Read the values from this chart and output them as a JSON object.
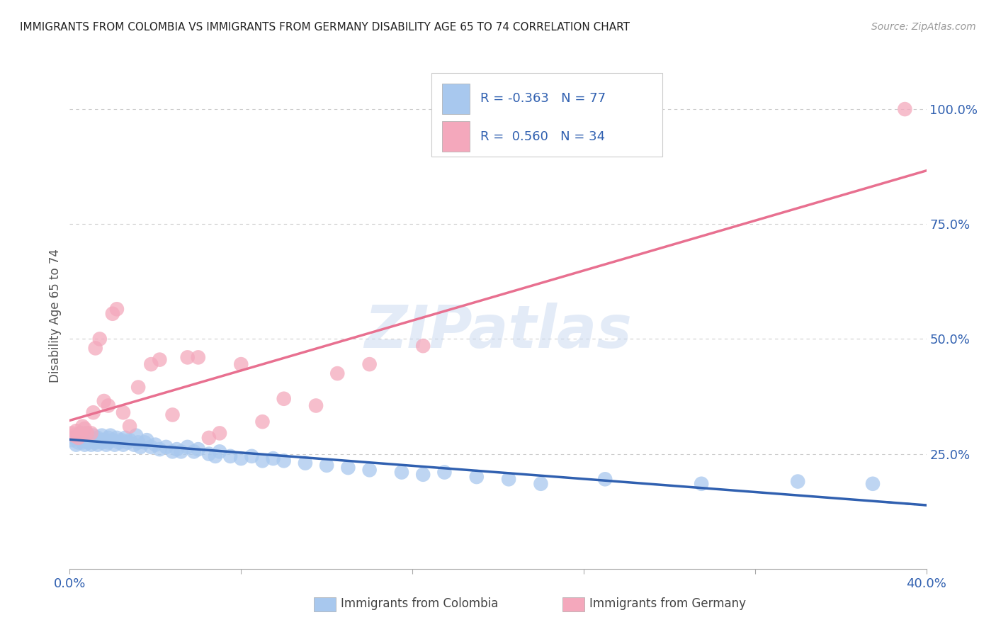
{
  "title": "IMMIGRANTS FROM COLOMBIA VS IMMIGRANTS FROM GERMANY DISABILITY AGE 65 TO 74 CORRELATION CHART",
  "source": "Source: ZipAtlas.com",
  "ylabel": "Disability Age 65 to 74",
  "xlim": [
    0.0,
    0.4
  ],
  "ylim": [
    0.0,
    1.1
  ],
  "colombia_R": -0.363,
  "colombia_N": 77,
  "germany_R": 0.56,
  "germany_N": 34,
  "colombia_color": "#A8C8EE",
  "germany_color": "#F4A8BC",
  "colombia_line_color": "#3060B0",
  "germany_line_color": "#E87090",
  "colombia_x": [
    0.001,
    0.002,
    0.003,
    0.004,
    0.004,
    0.005,
    0.005,
    0.006,
    0.006,
    0.007,
    0.007,
    0.008,
    0.008,
    0.009,
    0.01,
    0.01,
    0.011,
    0.012,
    0.012,
    0.013,
    0.013,
    0.014,
    0.015,
    0.015,
    0.016,
    0.017,
    0.018,
    0.018,
    0.019,
    0.02,
    0.021,
    0.022,
    0.023,
    0.024,
    0.025,
    0.026,
    0.027,
    0.028,
    0.03,
    0.031,
    0.032,
    0.033,
    0.035,
    0.036,
    0.038,
    0.04,
    0.042,
    0.045,
    0.048,
    0.05,
    0.052,
    0.055,
    0.058,
    0.06,
    0.065,
    0.068,
    0.07,
    0.075,
    0.08,
    0.085,
    0.09,
    0.095,
    0.1,
    0.11,
    0.12,
    0.13,
    0.14,
    0.155,
    0.165,
    0.175,
    0.19,
    0.205,
    0.22,
    0.25,
    0.295,
    0.34,
    0.375
  ],
  "colombia_y": [
    0.28,
    0.285,
    0.27,
    0.29,
    0.275,
    0.28,
    0.295,
    0.275,
    0.285,
    0.27,
    0.29,
    0.28,
    0.295,
    0.275,
    0.285,
    0.27,
    0.29,
    0.28,
    0.275,
    0.285,
    0.27,
    0.28,
    0.29,
    0.275,
    0.28,
    0.27,
    0.285,
    0.275,
    0.29,
    0.28,
    0.27,
    0.285,
    0.275,
    0.28,
    0.27,
    0.285,
    0.275,
    0.28,
    0.27,
    0.29,
    0.275,
    0.265,
    0.275,
    0.28,
    0.265,
    0.27,
    0.26,
    0.265,
    0.255,
    0.26,
    0.255,
    0.265,
    0.255,
    0.26,
    0.25,
    0.245,
    0.255,
    0.245,
    0.24,
    0.245,
    0.235,
    0.24,
    0.235,
    0.23,
    0.225,
    0.22,
    0.215,
    0.21,
    0.205,
    0.21,
    0.2,
    0.195,
    0.185,
    0.195,
    0.185,
    0.19,
    0.185
  ],
  "germany_x": [
    0.001,
    0.002,
    0.003,
    0.004,
    0.005,
    0.006,
    0.007,
    0.008,
    0.01,
    0.011,
    0.012,
    0.014,
    0.016,
    0.018,
    0.02,
    0.022,
    0.025,
    0.028,
    0.032,
    0.038,
    0.042,
    0.048,
    0.055,
    0.06,
    0.065,
    0.07,
    0.08,
    0.09,
    0.1,
    0.115,
    0.125,
    0.14,
    0.165,
    0.39
  ],
  "germany_y": [
    0.295,
    0.29,
    0.3,
    0.285,
    0.295,
    0.31,
    0.305,
    0.295,
    0.295,
    0.34,
    0.48,
    0.5,
    0.365,
    0.355,
    0.555,
    0.565,
    0.34,
    0.31,
    0.395,
    0.445,
    0.455,
    0.335,
    0.46,
    0.46,
    0.285,
    0.295,
    0.445,
    0.32,
    0.37,
    0.355,
    0.425,
    0.445,
    0.485,
    1.0
  ],
  "watermark": "ZIPatlas",
  "background_color": "#FFFFFF",
  "grid_color": "#CCCCCC"
}
